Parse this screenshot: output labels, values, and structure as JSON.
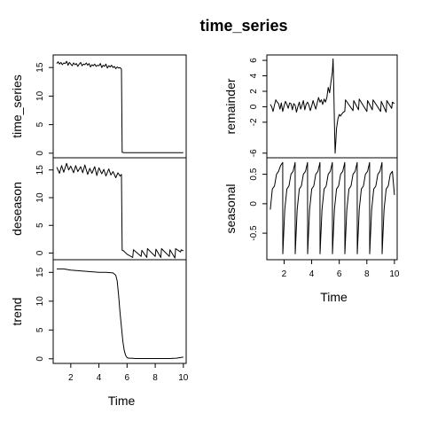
{
  "title": "time_series",
  "chart_data": [
    {
      "type": "line",
      "ylabel": "time_series",
      "xlim": [
        0.75,
        10.2
      ],
      "ylim": [
        -0.8,
        17.2
      ],
      "yticks": [
        0,
        5,
        10,
        15
      ],
      "x_axis_shown": false,
      "x": [
        1.0,
        1.1,
        1.2,
        1.3,
        1.4,
        1.5,
        1.6,
        1.7,
        1.8,
        1.9,
        2.0,
        2.1,
        2.2,
        2.3,
        2.4,
        2.5,
        2.6,
        2.7,
        2.8,
        2.9,
        3.0,
        3.1,
        3.2,
        3.3,
        3.4,
        3.5,
        3.6,
        3.7,
        3.8,
        3.9,
        4.0,
        4.1,
        4.2,
        4.3,
        4.4,
        4.5,
        4.6,
        4.7,
        4.8,
        4.9,
        5.0,
        5.1,
        5.2,
        5.3,
        5.4,
        5.5,
        5.6,
        5.65,
        5.8,
        6.0,
        7.0,
        8.0,
        9.0,
        10.0
      ],
      "y": [
        15.7,
        16.0,
        15.6,
        15.9,
        15.5,
        15.8,
        15.7,
        16.1,
        15.4,
        15.9,
        15.6,
        15.3,
        15.8,
        15.5,
        15.7,
        15.2,
        15.6,
        15.9,
        15.3,
        15.6,
        15.5,
        15.8,
        15.4,
        15.7,
        15.1,
        15.5,
        15.3,
        15.6,
        15.2,
        15.4,
        15.3,
        15.7,
        15.0,
        15.4,
        15.2,
        15.6,
        14.9,
        15.3,
        15.1,
        15.4,
        15.0,
        15.2,
        14.8,
        15.1,
        14.9,
        15.0,
        14.7,
        0.15,
        0.1,
        0.1,
        0.1,
        0.1,
        0.1,
        0.1
      ]
    },
    {
      "type": "line",
      "ylabel": "deseason",
      "xlim": [
        0.75,
        10.2
      ],
      "ylim": [
        -1.2,
        17.2
      ],
      "yticks": [
        0,
        5,
        10,
        15
      ],
      "x_axis_shown": false,
      "x": [
        1.0,
        1.2,
        1.35,
        1.5,
        1.7,
        1.85,
        2.0,
        2.2,
        2.35,
        2.5,
        2.7,
        2.85,
        3.0,
        3.2,
        3.35,
        3.5,
        3.7,
        3.85,
        4.0,
        4.2,
        4.35,
        4.5,
        4.7,
        4.85,
        5.0,
        5.2,
        5.35,
        5.5,
        5.6,
        5.65,
        5.75,
        6.0,
        6.4,
        6.45,
        7.0,
        7.05,
        7.4,
        7.45,
        8.0,
        8.05,
        8.4,
        8.45,
        9.0,
        9.05,
        9.4,
        9.45,
        9.8,
        9.85,
        10.0
      ],
      "y": [
        15.5,
        14.4,
        15.8,
        14.6,
        16.2,
        15.0,
        15.7,
        14.5,
        15.8,
        14.7,
        15.6,
        14.5,
        15.9,
        14.2,
        15.3,
        14.4,
        15.6,
        14.0,
        15.4,
        14.3,
        15.1,
        13.9,
        15.2,
        14.1,
        14.7,
        13.6,
        14.5,
        13.9,
        14.2,
        0.5,
        0.4,
        -0.2,
        -0.8,
        0.6,
        -0.6,
        0.5,
        -0.8,
        0.8,
        -0.6,
        0.7,
        -0.8,
        0.8,
        -0.6,
        0.6,
        -0.9,
        0.8,
        0.2,
        0.6,
        0.4
      ]
    },
    {
      "type": "line",
      "ylabel": "trend",
      "xlabel": "Time",
      "xlim": [
        0.75,
        10.2
      ],
      "ylim": [
        -0.8,
        17.2
      ],
      "yticks": [
        0,
        5,
        10,
        15
      ],
      "xticks": [
        2,
        4,
        6,
        8,
        10
      ],
      "x": [
        1.0,
        1.5,
        2.0,
        2.5,
        3.0,
        3.5,
        4.0,
        4.5,
        5.0,
        5.2,
        5.3,
        5.4,
        5.5,
        5.6,
        5.7,
        5.8,
        5.9,
        6.0,
        6.1,
        6.3,
        6.6,
        7.0,
        8.0,
        9.0,
        9.5,
        10.0
      ],
      "y": [
        15.6,
        15.6,
        15.4,
        15.3,
        15.2,
        15.1,
        15.0,
        15.0,
        14.9,
        14.5,
        13.5,
        11.0,
        8.0,
        5.5,
        3.0,
        1.4,
        0.6,
        0.2,
        0.1,
        0.1,
        0.05,
        0.05,
        0.05,
        0.05,
        0.1,
        0.3
      ]
    },
    {
      "type": "line",
      "ylabel": "remainder",
      "xlim": [
        0.75,
        10.2
      ],
      "ylim": [
        -6.6,
        6.7
      ],
      "yticks": [
        -6,
        -2,
        0,
        2,
        4,
        6
      ],
      "x_axis_shown": false,
      "x": [
        1.0,
        1.1,
        1.2,
        1.3,
        1.4,
        1.5,
        1.6,
        1.7,
        1.8,
        1.9,
        2.0,
        2.1,
        2.2,
        2.3,
        2.4,
        2.5,
        2.6,
        2.7,
        2.8,
        2.9,
        3.0,
        3.1,
        3.2,
        3.3,
        3.4,
        3.5,
        3.6,
        3.7,
        3.8,
        3.9,
        4.0,
        4.1,
        4.2,
        4.3,
        4.4,
        4.5,
        4.6,
        4.7,
        4.8,
        4.9,
        5.0,
        5.1,
        5.2,
        5.3,
        5.4,
        5.5,
        5.55,
        5.6,
        5.65,
        5.7,
        5.75,
        5.8,
        5.9,
        6.0,
        6.1,
        6.2,
        6.3,
        6.4,
        6.45,
        7.0,
        7.05,
        7.4,
        7.45,
        8.0,
        8.05,
        8.4,
        8.45,
        9.0,
        9.05,
        9.4,
        9.45,
        9.8,
        9.85,
        10.0
      ],
      "y": [
        0.3,
        0.0,
        -0.6,
        0.2,
        0.9,
        0.6,
        0.4,
        -0.3,
        0.5,
        -0.6,
        0.1,
        0.7,
        0.3,
        -0.2,
        0.5,
        0.4,
        -0.4,
        0.4,
        0.2,
        -0.7,
        0.0,
        0.6,
        -0.3,
        0.2,
        0.8,
        -0.4,
        0.3,
        0.6,
        0.2,
        -0.5,
        0.1,
        0.8,
        0.2,
        -0.3,
        0.5,
        1.2,
        0.6,
        0.9,
        0.3,
        1.0,
        0.6,
        1.2,
        2.5,
        1.8,
        3.2,
        4.5,
        6.2,
        3.0,
        -2.0,
        -6.0,
        -4.5,
        -2.8,
        -1.6,
        -1.0,
        -1.2,
        -0.9,
        -0.7,
        -0.6,
        0.9,
        -0.5,
        0.8,
        -0.4,
        1.0,
        -0.6,
        0.8,
        -0.4,
        0.9,
        -0.6,
        0.7,
        -0.7,
        0.8,
        -0.2,
        0.6,
        0.4
      ]
    },
    {
      "type": "line",
      "ylabel": "seasonal",
      "xlabel": "Time",
      "xlim": [
        0.75,
        10.2
      ],
      "ylim": [
        -0.95,
        0.78
      ],
      "yticks": [
        -0.5,
        0.0,
        0.5
      ],
      "xticks": [
        2,
        4,
        6,
        8,
        10
      ],
      "x": [
        1.0,
        1.15,
        1.3,
        1.45,
        1.6,
        1.75,
        1.9,
        1.91,
        2.05,
        2.2,
        2.35,
        2.5,
        2.65,
        2.8,
        2.81,
        2.95,
        3.1,
        3.25,
        3.4,
        3.55,
        3.7,
        3.71,
        3.85,
        4.0,
        4.15,
        4.3,
        4.45,
        4.6,
        4.61,
        4.75,
        4.9,
        5.05,
        5.2,
        5.35,
        5.5,
        5.51,
        5.65,
        5.8,
        5.95,
        6.1,
        6.25,
        6.4,
        6.41,
        6.55,
        6.7,
        6.85,
        7.0,
        7.15,
        7.3,
        7.31,
        7.45,
        7.6,
        7.75,
        7.9,
        8.05,
        8.2,
        8.21,
        8.35,
        8.5,
        8.65,
        8.8,
        8.95,
        9.1,
        9.11,
        9.25,
        9.4,
        9.55,
        9.7,
        9.85,
        10.0
      ],
      "y": [
        -0.1,
        0.25,
        0.3,
        0.5,
        0.55,
        0.65,
        0.7,
        -0.85,
        -0.1,
        0.25,
        0.3,
        0.5,
        0.55,
        0.7,
        -0.85,
        -0.1,
        0.25,
        0.3,
        0.5,
        0.55,
        0.7,
        -0.85,
        -0.1,
        0.25,
        0.3,
        0.5,
        0.55,
        0.7,
        -0.85,
        -0.1,
        0.25,
        0.3,
        0.5,
        0.55,
        0.7,
        -0.85,
        -0.1,
        0.25,
        0.3,
        0.5,
        0.55,
        0.7,
        -0.85,
        -0.1,
        0.25,
        0.3,
        0.5,
        0.55,
        0.7,
        -0.85,
        -0.1,
        0.25,
        0.3,
        0.5,
        0.55,
        0.7,
        -0.85,
        -0.1,
        0.25,
        0.3,
        0.5,
        0.55,
        0.7,
        -0.85,
        -0.1,
        0.25,
        0.3,
        0.5,
        0.55,
        0.15
      ]
    }
  ]
}
